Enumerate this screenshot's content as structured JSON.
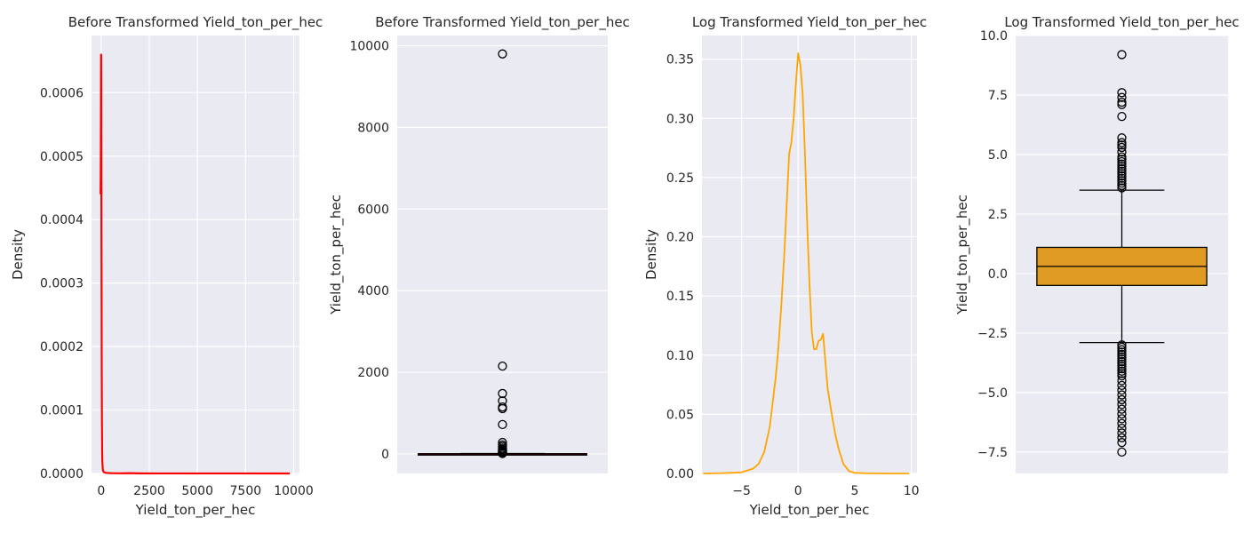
{
  "chart_data": [
    {
      "type": "line",
      "title": "Before Transformed Yield_ton_per_hec",
      "xlabel": "Yield_ton_per_hec",
      "ylabel": "Density",
      "xlim": [
        -500,
        10300
      ],
      "ylim": [
        0,
        0.00069
      ],
      "xticks": [
        0,
        2500,
        5000,
        7500,
        10000
      ],
      "xtick_labels": [
        "0",
        "2500",
        "5000",
        "7500",
        "10000"
      ],
      "yticks": [
        0,
        0.0001,
        0.0002,
        0.0003,
        0.0004,
        0.0005,
        0.0006
      ],
      "ytick_labels": [
        "0.0000",
        "0.0001",
        "0.0002",
        "0.0003",
        "0.0004",
        "0.0005",
        "0.0006"
      ],
      "grid": true,
      "color": "#ff0000",
      "series": [
        {
          "x": [
            -30,
            -22,
            -15,
            -10,
            -6,
            -3,
            0,
            3,
            6,
            9,
            12,
            15,
            20,
            25,
            30,
            40,
            50,
            60,
            80,
            100,
            150,
            250,
            500,
            1000,
            1500,
            2000,
            3000,
            5000,
            7500,
            9800
          ],
          "y": [
            0.00044,
            0.00047,
            0.00052,
            0.00058,
            0.00063,
            0.00066,
            0.00066,
            0.00063,
            0.00058,
            0.00052,
            0.00046,
            0.0004,
            0.00032,
            0.00024,
            0.00017,
            8.5e-05,
            4e-05,
            2e-05,
            8e-06,
            4e-06,
            2e-06,
            1e-06,
            5e-07,
            3e-07,
            5e-07,
            2e-07,
            1e-07,
            5e-08,
            5e-08,
            3e-08
          ]
        }
      ]
    },
    {
      "type": "box",
      "title": "Before Transformed Yield_ton_per_hec",
      "xlabel": "",
      "ylabel": "Yield_ton_per_hec",
      "ylim": [
        -480,
        10250
      ],
      "yticks": [
        0,
        2000,
        4000,
        6000,
        8000,
        10000
      ],
      "ytick_labels": [
        "0",
        "2000",
        "4000",
        "6000",
        "8000",
        "10000"
      ],
      "grid": true,
      "box_color": "#ff0000",
      "box": {
        "whisker_low": 0,
        "q1": 0.5,
        "median": 1.5,
        "q3": 3.5,
        "whisker_high": 8
      },
      "outliers": [
        9800,
        2150,
        1480,
        1300,
        1150,
        1110,
        720,
        280,
        220,
        180,
        140,
        110,
        90,
        70,
        55,
        40,
        30,
        22,
        15,
        10
      ]
    },
    {
      "type": "line",
      "title": "Log Transformed Yield_ton_per_hec",
      "xlabel": "Yield_ton_per_hec",
      "ylabel": "Density",
      "xlim": [
        -8.5,
        10.5
      ],
      "ylim": [
        0,
        0.37
      ],
      "xticks": [
        -5,
        0,
        5,
        10
      ],
      "xtick_labels": [
        "−5",
        "0",
        "5",
        "10"
      ],
      "yticks": [
        0,
        0.05,
        0.1,
        0.15,
        0.2,
        0.25,
        0.3,
        0.35
      ],
      "ytick_labels": [
        "0.00",
        "0.05",
        "0.10",
        "0.15",
        "0.20",
        "0.25",
        "0.30",
        "0.35"
      ],
      "grid": true,
      "color": "#ffa500",
      "series": [
        {
          "x": [
            -8.4,
            -7,
            -6,
            -5,
            -4,
            -3.5,
            -3,
            -2.5,
            -2,
            -1.8,
            -1.5,
            -1.2,
            -1,
            -0.8,
            -0.6,
            -0.4,
            -0.2,
            0,
            0.2,
            0.4,
            0.6,
            0.8,
            1,
            1.2,
            1.4,
            1.6,
            1.8,
            2,
            2.2,
            2.4,
            2.6,
            2.8,
            3,
            3.3,
            3.6,
            4,
            4.5,
            5,
            6,
            8,
            9.8
          ],
          "y": [
            0,
            0.0002,
            0.0005,
            0.001,
            0.004,
            0.008,
            0.018,
            0.04,
            0.08,
            0.1,
            0.14,
            0.19,
            0.23,
            0.27,
            0.28,
            0.3,
            0.33,
            0.355,
            0.345,
            0.32,
            0.27,
            0.21,
            0.16,
            0.12,
            0.105,
            0.105,
            0.112,
            0.113,
            0.118,
            0.095,
            0.072,
            0.06,
            0.048,
            0.032,
            0.02,
            0.008,
            0.002,
            0.0005,
            0.0002,
            0,
            0
          ]
        }
      ]
    },
    {
      "type": "box",
      "title": "Log Transformed Yield_ton_per_hec",
      "xlabel": "",
      "ylabel": "Yield_ton_per_hec",
      "ylim": [
        -8.4,
        10.0
      ],
      "yticks": [
        -7.5,
        -5,
        -2.5,
        0,
        2.5,
        5,
        7.5,
        10
      ],
      "ytick_labels": [
        "−7.5",
        "−5.0",
        "−2.5",
        "0.0",
        "2.5",
        "5.0",
        "7.5",
        "10.0"
      ],
      "grid": true,
      "box_color": "#e09b24",
      "box": {
        "whisker_low": -2.9,
        "q1": -0.5,
        "median": 0.3,
        "q3": 1.1,
        "whisker_high": 3.5
      },
      "outliers": [
        9.2,
        7.6,
        7.4,
        7.2,
        7.1,
        6.6,
        5.7,
        5.5,
        5.4,
        5.3,
        5.1,
        4.9,
        4.8,
        4.7,
        4.6,
        4.5,
        4.4,
        4.3,
        4.2,
        4.1,
        4.0,
        3.9,
        3.8,
        3.7,
        3.6,
        -3.0,
        -3.1,
        -3.2,
        -3.3,
        -3.4,
        -3.5,
        -3.6,
        -3.7,
        -3.8,
        -3.9,
        -4.0,
        -4.1,
        -4.2,
        -4.3,
        -4.5,
        -4.7,
        -4.9,
        -5.1,
        -5.3,
        -5.5,
        -5.7,
        -5.9,
        -6.1,
        -6.3,
        -6.5,
        -6.7,
        -6.9,
        -7.1,
        -7.5
      ]
    }
  ]
}
